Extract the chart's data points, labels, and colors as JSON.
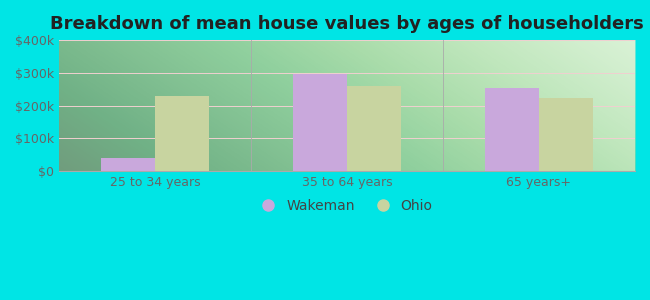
{
  "title": "Breakdown of mean house values by ages of householders",
  "categories": [
    "25 to 34 years",
    "35 to 64 years",
    "65 years+"
  ],
  "wakeman_values": [
    40000,
    295000,
    255000
  ],
  "ohio_values": [
    230000,
    260000,
    223000
  ],
  "wakeman_color": "#c9a8dc",
  "ohio_color": "#c8d4a0",
  "ylim": [
    0,
    400000
  ],
  "yticks": [
    0,
    100000,
    200000,
    300000,
    400000
  ],
  "ytick_labels": [
    "$0",
    "$100k",
    "$200k",
    "$300k",
    "$400k"
  ],
  "bar_width": 0.28,
  "background_outer": "#00e5e5",
  "legend_labels": [
    "Wakeman",
    "Ohio"
  ],
  "title_fontsize": 13,
  "tick_fontsize": 9,
  "legend_fontsize": 10
}
